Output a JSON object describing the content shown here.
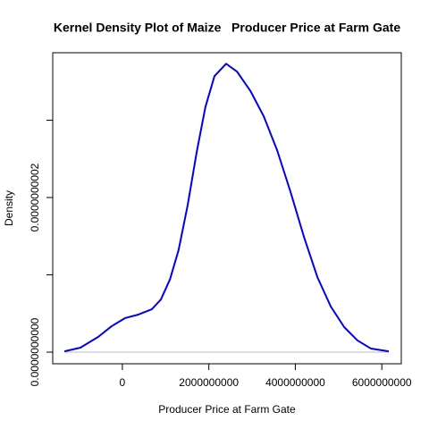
{
  "chart_data": {
    "type": "line",
    "title": "Kernel Density Plot of Maize   Producer Price at Farm Gate",
    "x_label": "Producer Price at Farm Gate",
    "y_label": "Density",
    "x": [
      -1340000000,
      -970000000,
      -560000000,
      -250000000,
      60000000,
      370000000,
      680000000,
      890000000,
      1100000000,
      1300000000,
      1510000000,
      1720000000,
      1920000000,
      2130000000,
      2400000000,
      2650000000,
      2960000000,
      3270000000,
      3580000000,
      3890000000,
      4200000000,
      4510000000,
      4820000000,
      5130000000,
      5440000000,
      5750000000,
      6160000000
    ],
    "series": [
      {
        "name": "Density",
        "color": "#0000ee",
        "values": [
          1e-12,
          5.8e-12,
          1.97e-11,
          3.35e-11,
          4.4e-11,
          4.86e-11,
          5.55e-11,
          6.8e-11,
          9.4e-11,
          1.32e-10,
          1.9e-10,
          2.59e-10,
          3.17e-10,
          3.57e-10,
          3.73e-10,
          3.63e-10,
          3.38e-10,
          3.05e-10,
          2.61e-10,
          2.07e-10,
          1.49e-10,
          9.7e-11,
          5.9e-11,
          3.24e-11,
          1.5e-11,
          4.6e-12,
          1e-12
        ]
      }
    ],
    "baseline_color": "#bebebe",
    "xlim": [
      -1610000000,
      6450000000
    ],
    "xticks": [
      0,
      2000000000,
      4000000000,
      6000000000
    ],
    "ylim": [
      -1.5e-11,
      3.873e-10
    ],
    "yticks": [
      {
        "value": 0,
        "label": "0.0000000000"
      },
      {
        "value": 1e-10
      },
      {
        "value": 2e-10,
        "label": "0.0000000002"
      },
      {
        "value": 3e-10
      }
    ]
  }
}
